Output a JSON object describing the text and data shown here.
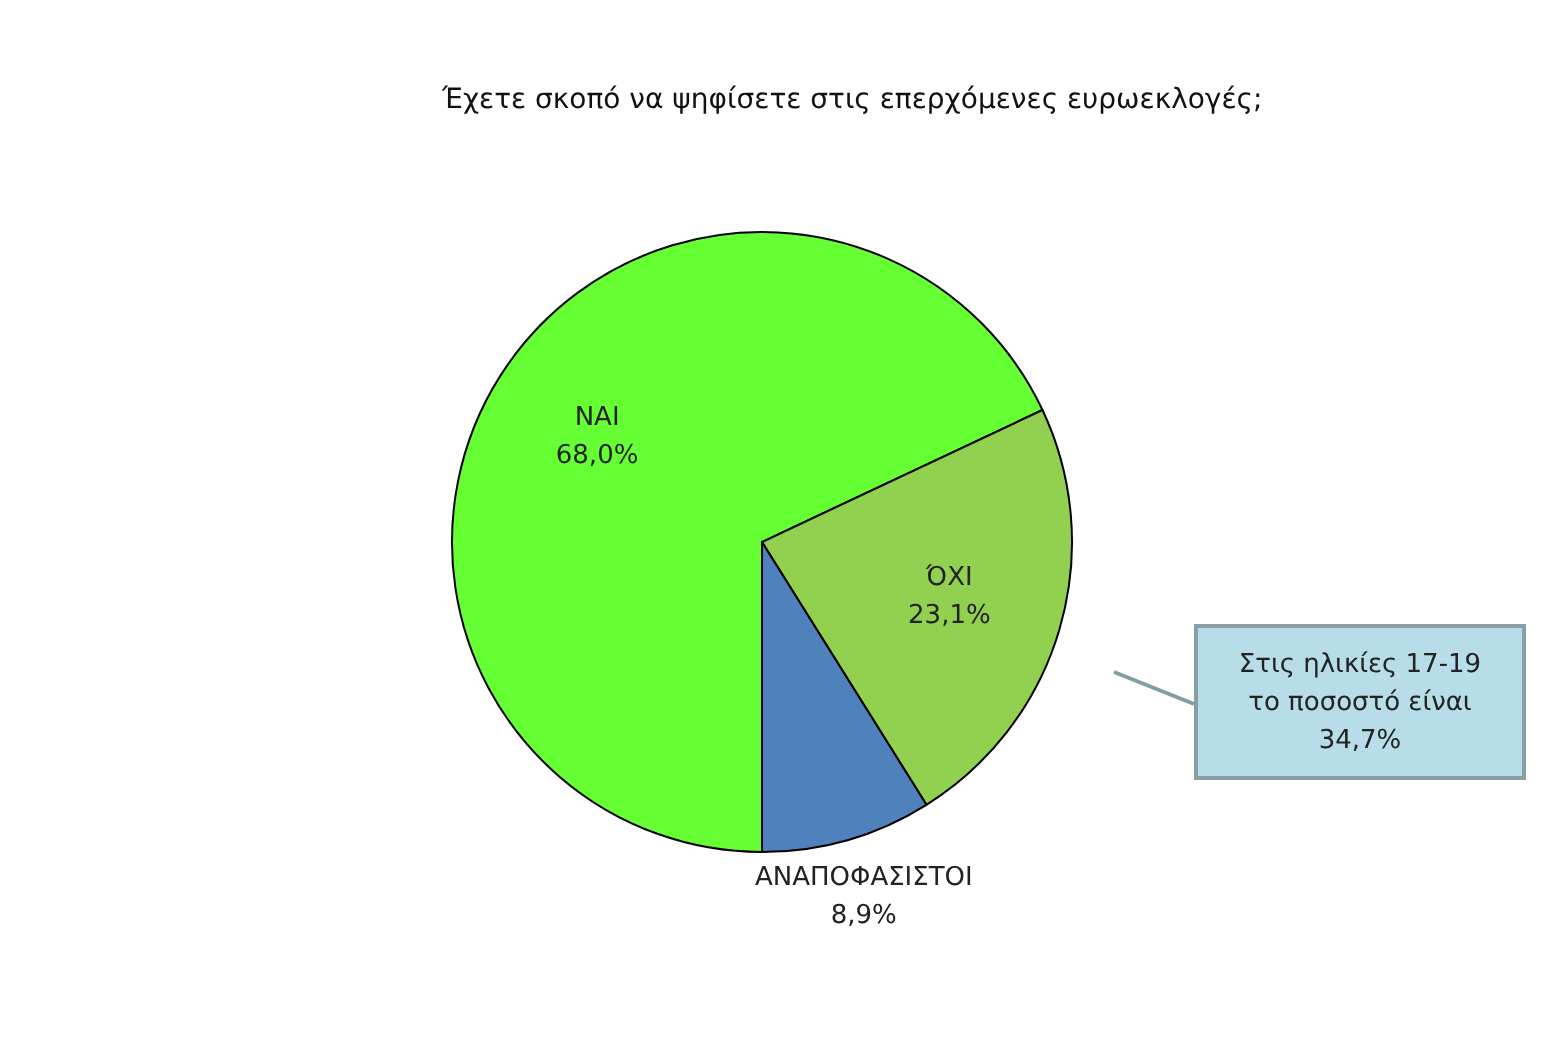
{
  "chart_data": {
    "type": "pie",
    "title": "Έχετε σκοπό να ψηφίσετε στις επερχόμενες ευρωεκλογές;",
    "categories": [
      "ΝΑΙ",
      "ΌΧΙ",
      "ΑΝΑΠΟΦΑΣΙΣΤΟΙ"
    ],
    "values": [
      68.0,
      23.1,
      8.9
    ],
    "colors": [
      "#66ff33",
      "#92d050",
      "#4f81bd"
    ],
    "value_labels": [
      "68,0%",
      "23,1%",
      "8,9%"
    ],
    "annotations": [
      "Στις ηλικίες 17-19\nτο ποσοστό είναι\n34,7%"
    ]
  }
}
